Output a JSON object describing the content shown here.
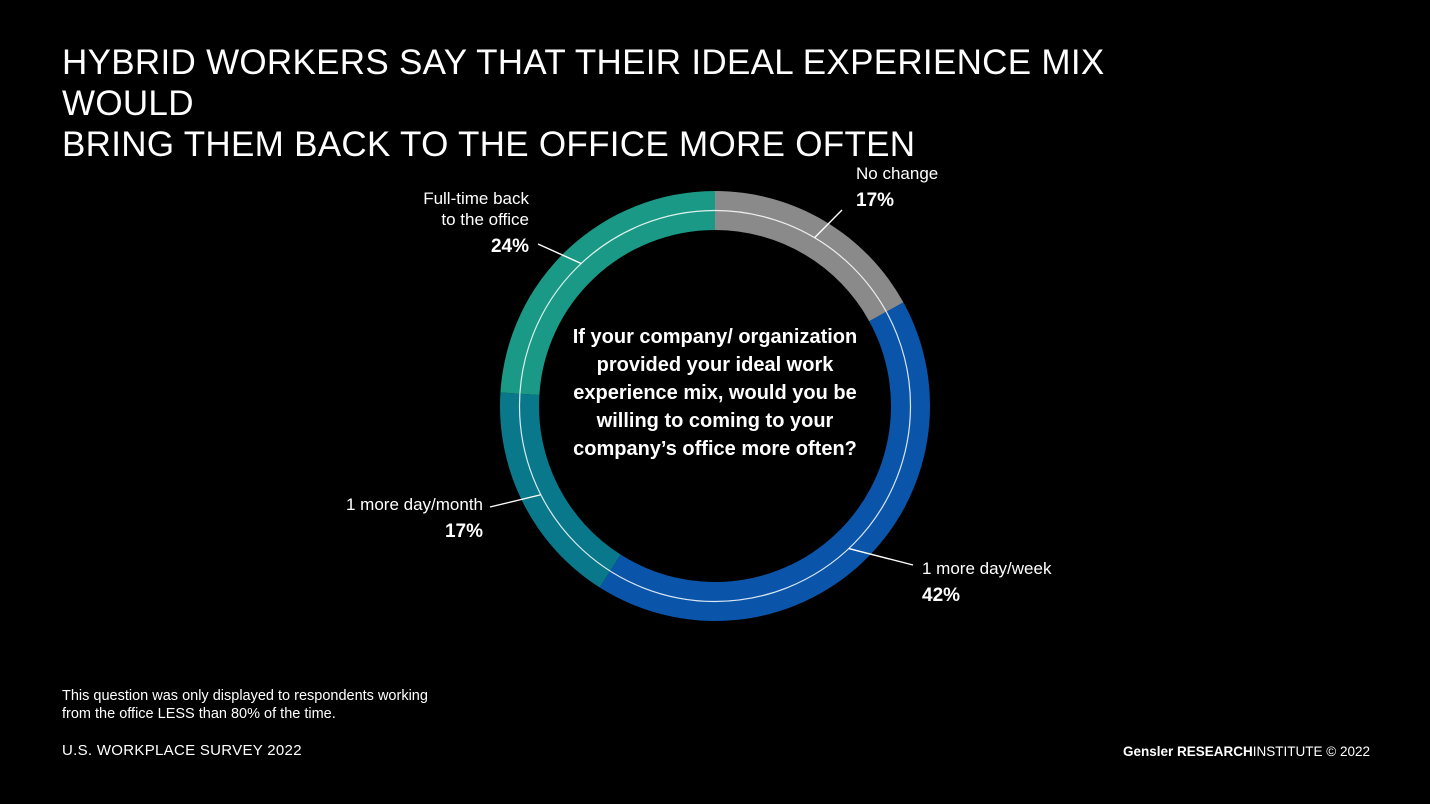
{
  "title": {
    "line1": "HYBRID WORKERS SAY THAT THEIR IDEAL EXPERIENCE MIX WOULD",
    "line2": "BRING THEM BACK TO THE OFFICE MORE OFTEN"
  },
  "center_question": "If your company/ organization provided your ideal work experience mix, would you be willing to coming to your company’s office more often?",
  "labels": {
    "no_change": {
      "cat": "No change",
      "pct": "17%"
    },
    "one_more_day_week": {
      "cat": "1 more day/week",
      "pct": "42%"
    },
    "one_more_day_month": {
      "cat": "1 more day/month",
      "pct": "17%"
    },
    "full_time": {
      "cat_line1": "Full-time back",
      "cat_line2": "to the office",
      "pct": "24%"
    }
  },
  "chart_data": {
    "type": "pie",
    "donut": true,
    "start": "12 o'clock, clockwise",
    "slices": [
      {
        "label": "No change",
        "value": 17,
        "color": "#8a8a8a"
      },
      {
        "label": "1 more day/week",
        "value": 42,
        "color": "#0a55aa"
      },
      {
        "label": "1 more day/month",
        "value": 17,
        "color": "#08788a"
      },
      {
        "label": "Full-time back to the office",
        "value": 24,
        "color": "#1a9a86"
      }
    ]
  },
  "footnote": {
    "line1": "This question was only displayed to respondents working",
    "line2": "from the office LESS than 80% of the time."
  },
  "survey": "U.S. WORKPLACE SURVEY 2022",
  "brand": {
    "gensler": "Gensler",
    "research": "RESEARCH",
    "institute": "INSTITUTE",
    "copyright": "© 2022"
  },
  "colors": {
    "background": "#000000",
    "text": "#ffffff"
  }
}
